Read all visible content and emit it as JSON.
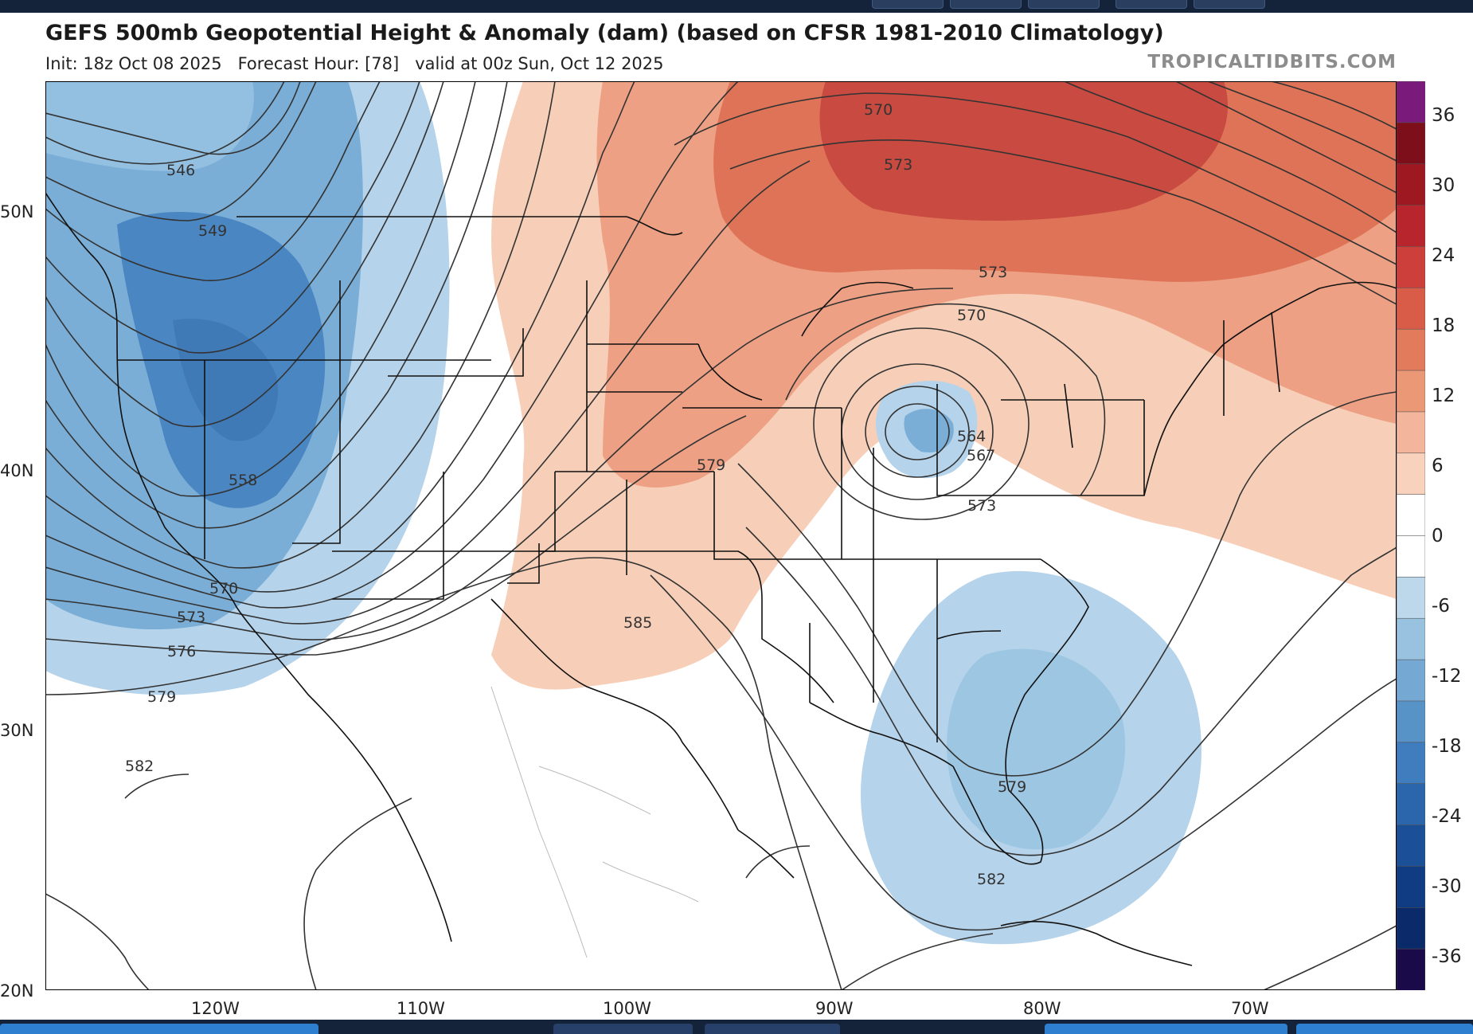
{
  "header": {
    "title": "GEFS 500mb Geopotential Height & Anomaly (dam) (based on CFSR 1981-2010 Climatology)",
    "subtitle": "Init: 18z Oct 08 2025   Forecast Hour: [78]   valid at 00z Sun, Oct 12 2025",
    "credit": "TROPICALTIDBITS.COM"
  },
  "axes": {
    "y_ticks": [
      "50N",
      "40N",
      "30N",
      "20N"
    ],
    "x_ticks": [
      "120W",
      "110W",
      "100W",
      "90W",
      "80W",
      "70W"
    ]
  },
  "colorbar": {
    "labels": [
      "36",
      "30",
      "24",
      "18",
      "12",
      "6",
      "0",
      "-6",
      "-12",
      "-18",
      "-24",
      "-30",
      "-36"
    ],
    "colors": [
      "#1a0a4a",
      "#0a2a6a",
      "#0f3c82",
      "#1b4f97",
      "#2b65ac",
      "#3f7dbe",
      "#5893c8",
      "#75a8d3",
      "#98c2e0",
      "#bcd8ea",
      "#ffffff",
      "#ffffff",
      "#f8d2bd",
      "#f3b69c",
      "#eb9877",
      "#e27a5c",
      "#d85c48",
      "#cc3f3a",
      "#b8252d",
      "#9e1822",
      "#7d0f1a",
      "#7a1a7a"
    ]
  },
  "contour_labels": {
    "c546": "546",
    "c549": "549",
    "c558": "558",
    "c570w": "570",
    "c573w": "573",
    "c576w": "576",
    "c579w": "579",
    "c582w": "582",
    "c585": "585",
    "c579c": "579",
    "c570n": "570",
    "c573n": "573",
    "c573gl": "573",
    "c570gl": "570",
    "c564": "564",
    "c567": "567",
    "c573oh": "573",
    "c579fl": "579",
    "c582fl": "582"
  },
  "colors": {
    "blue_dark": "#4a86c2",
    "blue_mid": "#7aaed6",
    "blue_light": "#b5d3ea",
    "red_light": "#f7cfb8",
    "red_mid": "#eda083",
    "red_strong": "#de7357",
    "red_dark": "#c84a40"
  }
}
